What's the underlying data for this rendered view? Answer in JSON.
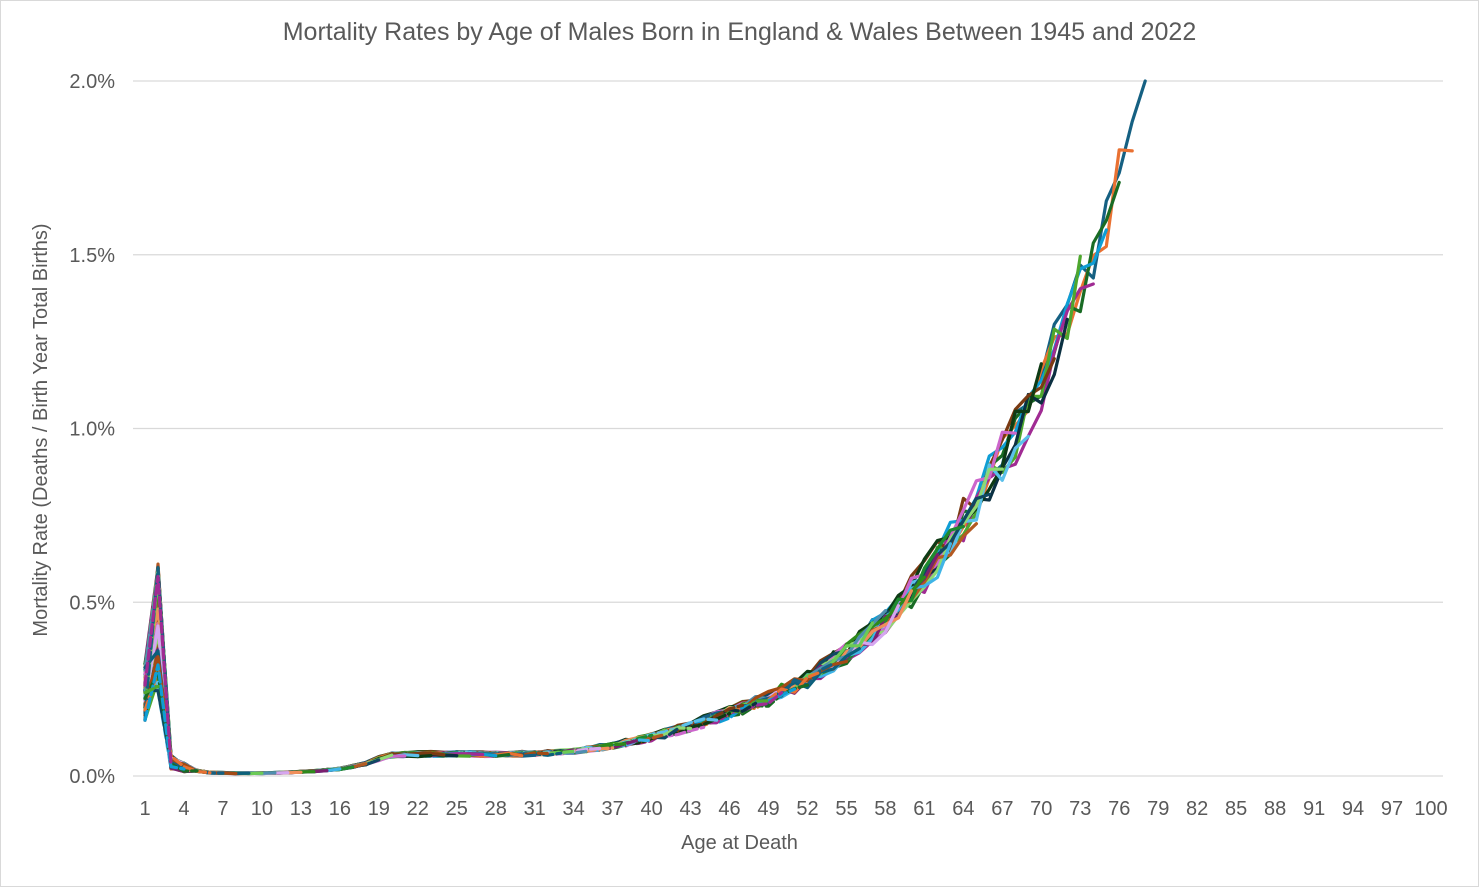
{
  "chart_data": {
    "type": "line",
    "title": "Mortality Rates by Age of Males Born in England & Wales Between 1945 and 2022",
    "xlabel": "Age at Death",
    "ylabel": "Mortality Rate (Deaths / Birth Year Total Births)",
    "x_range": [
      1,
      100
    ],
    "x_tick_labels": [
      "1",
      "4",
      "7",
      "10",
      "13",
      "16",
      "19",
      "22",
      "25",
      "28",
      "31",
      "34",
      "37",
      "40",
      "43",
      "46",
      "49",
      "52",
      "55",
      "58",
      "61",
      "64",
      "67",
      "70",
      "73",
      "76",
      "79",
      "82",
      "85",
      "88",
      "91",
      "94",
      "97",
      "100"
    ],
    "ylim": [
      0,
      0.02
    ],
    "y_tick_values": [
      0,
      0.005,
      0.01,
      0.015,
      0.02
    ],
    "y_tick_labels": [
      "0.0%",
      "0.5%",
      "1.0%",
      "1.5%",
      "2.0%"
    ],
    "grid": "horizontal",
    "legend": "none",
    "series_count": 78,
    "reference_curve": {
      "ages": [
        1,
        2,
        3,
        4,
        5,
        6,
        8,
        10,
        12,
        14,
        16,
        18,
        19,
        20,
        22,
        25,
        28,
        31,
        34,
        37,
        40,
        43,
        46,
        49,
        52,
        55,
        58,
        61,
        64,
        67,
        70,
        73,
        76,
        78,
        79
      ],
      "rates": [
        0.0025,
        0.0042,
        0.0004,
        0.00025,
        0.00015,
        0.0001,
        8e-05,
        8e-05,
        0.0001,
        0.00014,
        0.0002,
        0.00035,
        0.0005,
        0.0006,
        0.00062,
        0.00063,
        0.00062,
        0.00064,
        0.0007,
        0.00085,
        0.0011,
        0.0014,
        0.0018,
        0.0022,
        0.0027,
        0.0034,
        0.0043,
        0.0055,
        0.0071,
        0.0088,
        0.0108,
        0.0135,
        0.0165,
        0.019,
        0.02
      ]
    },
    "series_colors": [
      "#156082",
      "#E97132",
      "#196B24",
      "#0F9ED5",
      "#A02B93",
      "#4EA72E",
      "#0B3041",
      "#7A3A12",
      "#0E3B15",
      "#5BC0EB",
      "#CC66CC",
      "#8ED973",
      "#104862",
      "#B35A22",
      "#1E8A2E",
      "#3FB4E6",
      "#7A1F6E",
      "#2F8A1A",
      "#F08F5A",
      "#D5A6F0",
      "#4F8FB0",
      "#6BCB55",
      "#0C5F7A",
      "#A34A14"
    ]
  }
}
